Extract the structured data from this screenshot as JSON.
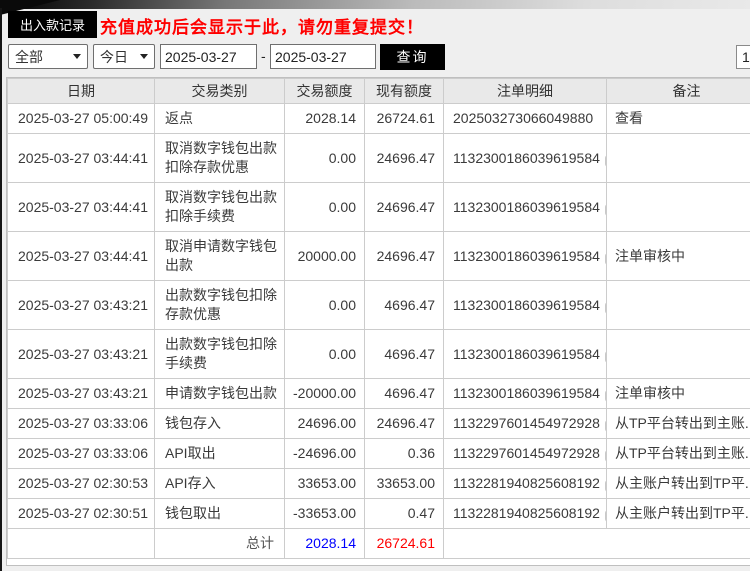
{
  "header": {
    "tab_label": "出入款记录",
    "notice": "充值成功后会显示于此，请勿重复提交！"
  },
  "filters": {
    "type_select": "全部",
    "range_select": "今日",
    "date_from": "2025-03-27",
    "date_to": "2025-03-27",
    "separator": "-",
    "query_button": "查询",
    "page_number": "1"
  },
  "colors": {
    "total_amount": "#0000ff",
    "total_balance": "#ff0000",
    "notice_red": "#ff0000",
    "accent_black": "#000000"
  },
  "table": {
    "columns": [
      "日期",
      "交易类别",
      "交易额度",
      "现有额度",
      "注单明细",
      "备注"
    ],
    "rows": [
      {
        "date": "2025-03-27 05:00:49",
        "type": "返点",
        "amount": "2028.14",
        "balance": "26724.61",
        "detail": "202503273066049880",
        "copy": false,
        "remark": "查看",
        "remark_link": true
      },
      {
        "date": "2025-03-27 03:44:41",
        "type": "取消数字钱包出款扣除存款优惠",
        "amount": "0.00",
        "balance": "24696.47",
        "detail": "1132300186039619584",
        "copy": true,
        "remark": "",
        "remark_link": false
      },
      {
        "date": "2025-03-27 03:44:41",
        "type": "取消数字钱包出款扣除手续费",
        "amount": "0.00",
        "balance": "24696.47",
        "detail": "1132300186039619584",
        "copy": true,
        "remark": "",
        "remark_link": false
      },
      {
        "date": "2025-03-27 03:44:41",
        "type": "取消申请数字钱包出款",
        "amount": "20000.00",
        "balance": "24696.47",
        "detail": "1132300186039619584",
        "copy": true,
        "remark": "注单审核中",
        "remark_link": false
      },
      {
        "date": "2025-03-27 03:43:21",
        "type": "出款数字钱包扣除存款优惠",
        "amount": "0.00",
        "balance": "4696.47",
        "detail": "1132300186039619584",
        "copy": true,
        "remark": "",
        "remark_link": false
      },
      {
        "date": "2025-03-27 03:43:21",
        "type": "出款数字钱包扣除手续费",
        "amount": "0.00",
        "balance": "4696.47",
        "detail": "1132300186039619584",
        "copy": true,
        "remark": "",
        "remark_link": false
      },
      {
        "date": "2025-03-27 03:43:21",
        "type": "申请数字钱包出款",
        "amount": "-20000.00",
        "balance": "4696.47",
        "detail": "1132300186039619584",
        "copy": true,
        "remark": "注单审核中",
        "remark_link": false
      },
      {
        "date": "2025-03-27 03:33:06",
        "type": "钱包存入",
        "amount": "24696.00",
        "balance": "24696.47",
        "detail": "1132297601454972928",
        "copy": true,
        "remark": "从TP平台转出到主账...",
        "remark_link": false
      },
      {
        "date": "2025-03-27 03:33:06",
        "type": "API取出",
        "amount": "-24696.00",
        "balance": "0.36",
        "detail": "1132297601454972928",
        "copy": true,
        "remark": "从TP平台转出到主账...",
        "remark_link": false
      },
      {
        "date": "2025-03-27 02:30:53",
        "type": "API存入",
        "amount": "33653.00",
        "balance": "33653.00",
        "detail": "1132281940825608192",
        "copy": true,
        "remark": "从主账户转出到TP平...",
        "remark_link": false
      },
      {
        "date": "2025-03-27 02:30:51",
        "type": "钱包取出",
        "amount": "-33653.00",
        "balance": "0.47",
        "detail": "1132281940825608192",
        "copy": true,
        "remark": "从主账户转出到TP平...",
        "remark_link": false
      }
    ],
    "total": {
      "label": "总计",
      "amount": "2028.14",
      "balance": "26724.61"
    }
  }
}
